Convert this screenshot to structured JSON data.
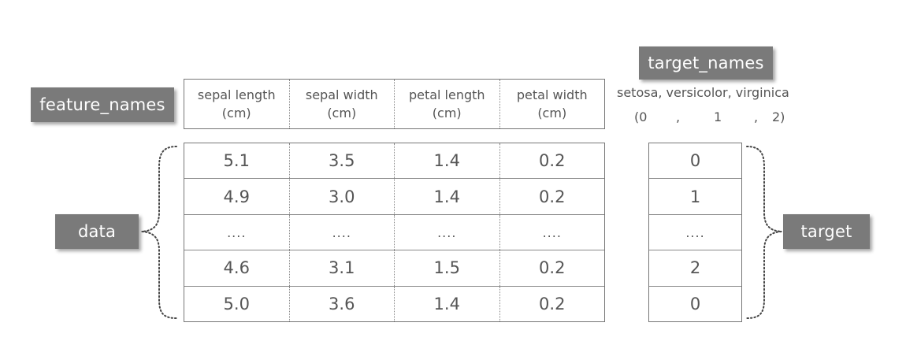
{
  "labels": {
    "feature_names": "feature_names",
    "target_names": "target_names",
    "data": "data",
    "target": "target"
  },
  "feature_headers": [
    {
      "line1": "sepal length",
      "line2": "(cm)"
    },
    {
      "line1": "sepal width",
      "line2": "(cm)"
    },
    {
      "line1": "petal length",
      "line2": "(cm)"
    },
    {
      "line1": "petal width",
      "line2": "(cm)"
    }
  ],
  "target_names_text": "setosa, versicolor, virginica",
  "target_codes": {
    "open": "(0",
    "comma1": ",",
    "one": "1",
    "comma2": ",",
    "close": "2)"
  },
  "data_rows": [
    [
      "5.1",
      "3.5",
      "1.4",
      "0.2"
    ],
    [
      "4.9",
      "3.0",
      "1.4",
      "0.2"
    ],
    [
      "....",
      "....",
      "....",
      "...."
    ],
    [
      "4.6",
      "3.1",
      "1.5",
      "0.2"
    ],
    [
      "5.0",
      "3.6",
      "1.4",
      "0.2"
    ]
  ],
  "target_values": [
    "0",
    "1",
    "....",
    "2",
    "0"
  ],
  "colors": {
    "label_box": "#7a7a7a",
    "text": "#555555",
    "border": "#777777"
  }
}
